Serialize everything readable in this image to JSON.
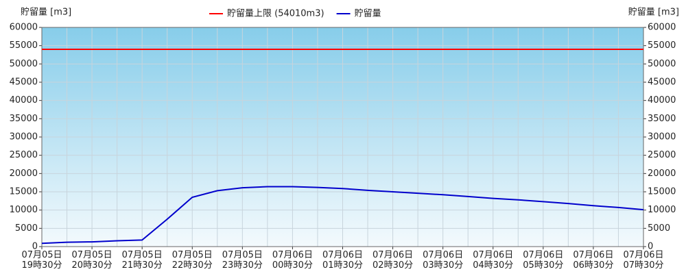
{
  "chart_data": {
    "type": "line",
    "ylabel": "貯留量 [m3]",
    "y2label": "貯留量 [m3]",
    "categories": [
      "07月05日 19時30分",
      null,
      "07月05日 20時30分",
      null,
      "07月05日 21時30分",
      null,
      "07月05日 22時30分",
      null,
      "07月05日 23時30分",
      null,
      "07月06日 00時30分",
      null,
      "07月06日 01時30分",
      null,
      "07月06日 02時30分",
      null,
      "07月06日 03時30分",
      null,
      "07月06日 04時30分",
      null,
      "07月06日 05時30分",
      null,
      "07月06日 06時30分",
      null,
      "07月06日 07時30分"
    ],
    "reference_line": {
      "name": "貯留量上限 (54010m3)",
      "value": 54010,
      "color": "#ff0000"
    },
    "series": [
      {
        "name": "貯留量",
        "color": "#0000cc",
        "values": [
          900,
          1200,
          1300,
          1600,
          1800,
          7500,
          13500,
          15300,
          16100,
          16400,
          16400,
          16200,
          15900,
          15400,
          15000,
          14600,
          14200,
          13700,
          13200,
          12800,
          12300,
          11800,
          11200,
          10700,
          10100
        ]
      }
    ],
    "ylim": [
      0,
      60000
    ],
    "yticks": [
      0,
      5000,
      10000,
      15000,
      20000,
      25000,
      30000,
      35000,
      40000,
      45000,
      50000,
      55000,
      60000
    ],
    "y2lim": [
      0,
      60000
    ],
    "y2ticks": [
      0,
      5000,
      10000,
      15000,
      20000,
      25000,
      30000,
      35000,
      40000,
      45000,
      50000,
      55000,
      60000
    ],
    "grid": true,
    "legend": "top"
  }
}
